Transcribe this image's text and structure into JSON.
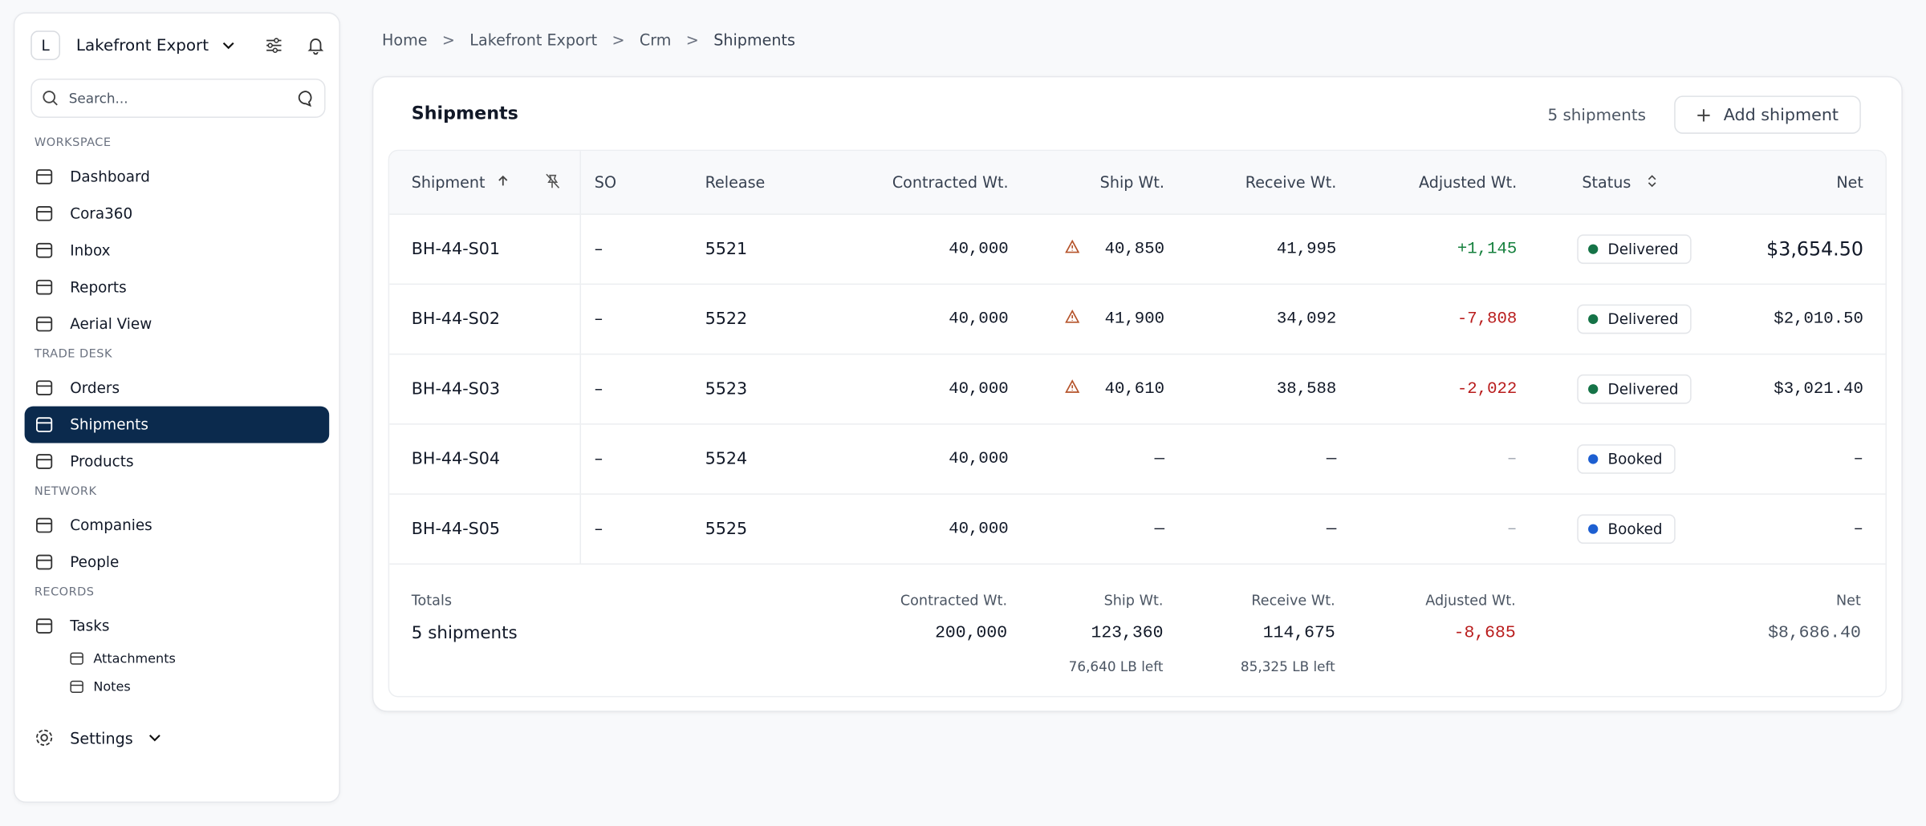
{
  "sidebar": {
    "org_initial": "L",
    "org_name": "Lakefront Export",
    "search_placeholder": "Search...",
    "sections": [
      {
        "title": "WORKSPACE",
        "items": [
          {
            "label": "Dashboard"
          },
          {
            "label": "Cora360"
          },
          {
            "label": "Inbox"
          },
          {
            "label": "Reports"
          },
          {
            "label": "Aerial View"
          }
        ]
      },
      {
        "title": "TRADE DESK",
        "items": [
          {
            "label": "Orders"
          },
          {
            "label": "Shipments",
            "active": true
          },
          {
            "label": "Products"
          }
        ]
      },
      {
        "title": "NETWORK",
        "items": [
          {
            "label": "Companies"
          },
          {
            "label": "People"
          }
        ]
      },
      {
        "title": "RECORDS",
        "items": [
          {
            "label": "Tasks"
          },
          {
            "label": "Attachments",
            "sub": true
          },
          {
            "label": "Notes",
            "sub": true
          }
        ]
      }
    ],
    "settings": "Settings"
  },
  "breadcrumb": [
    "Home",
    "Lakefront Export",
    "Crm",
    "Shipments"
  ],
  "card": {
    "title": "Shipments",
    "count": "5 shipments",
    "add_button": "Add shipment"
  },
  "table": {
    "columns": [
      "Shipment",
      "SO",
      "Release",
      "Contracted Wt.",
      "Ship Wt.",
      "Receive Wt.",
      "Adjusted Wt.",
      "Status",
      "Net"
    ],
    "rows": [
      {
        "shipment": "BH-44-S01",
        "so": "–",
        "release": "5521",
        "contracted": "40,000",
        "ship": "40,850",
        "warning": true,
        "receive": "41,995",
        "adjusted": "+1,145",
        "status": "Delivered",
        "status_color": "#157347",
        "net": "$3,654.50"
      },
      {
        "shipment": "BH-44-S02",
        "so": "–",
        "release": "5522",
        "contracted": "40,000",
        "ship": "41,900",
        "warning": true,
        "receive": "34,092",
        "adjusted": "-7,808",
        "status": "Delivered",
        "status_color": "#157347",
        "net": "$2,010.50"
      },
      {
        "shipment": "BH-44-S03",
        "so": "–",
        "release": "5523",
        "contracted": "40,000",
        "ship": "40,610",
        "warning": true,
        "receive": "38,588",
        "adjusted": "-2,022",
        "status": "Delivered",
        "status_color": "#157347",
        "net": "$3,021.40"
      },
      {
        "shipment": "BH-44-S04",
        "so": "–",
        "release": "5524",
        "contracted": "40,000",
        "ship": "—",
        "warning": false,
        "receive": "—",
        "adjusted": "–",
        "status": "Booked",
        "status_color": "#1d5fd1",
        "net": "–"
      },
      {
        "shipment": "BH-44-S05",
        "so": "–",
        "release": "5525",
        "contracted": "40,000",
        "ship": "—",
        "warning": false,
        "receive": "—",
        "adjusted": "–",
        "status": "Booked",
        "status_color": "#1d5fd1",
        "net": "–"
      }
    ],
    "totals": {
      "label": "Totals",
      "count": "5 shipments",
      "contracted_label": "Contracted Wt.",
      "contracted": "200,000",
      "ship_label": "Ship Wt.",
      "ship": "123,360",
      "ship_left": "76,640 LB left",
      "receive_label": "Receive Wt.",
      "receive": "114,675",
      "receive_left": "85,325 LB left",
      "adjusted_label": "Adjusted Wt.",
      "adjusted": "-8,685",
      "net_label": "Net",
      "net": "$8,686.40"
    }
  }
}
